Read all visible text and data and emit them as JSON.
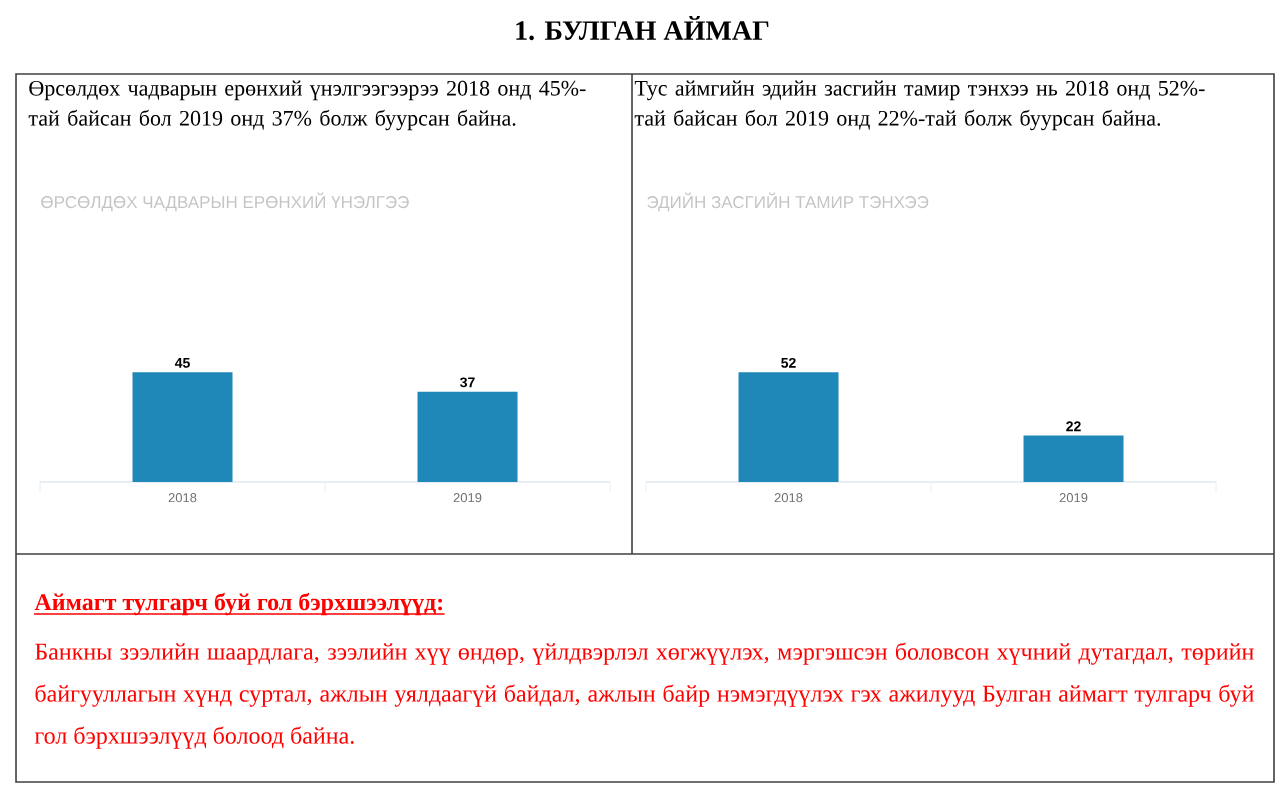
{
  "chart_data": [
    {
      "type": "bar",
      "title": "ӨРСӨЛДӨХ ЧАДВАРЫН ЕРӨНХИЙ ҮНЭЛГЭЭ",
      "categories": [
        "2018",
        "2019"
      ],
      "values": [
        45,
        37
      ],
      "color": "#1f88b8",
      "data_labels": true,
      "annotations": [
        "Өрсөлдөх чадварын ерөнхий үнэлгээгээрээ  2018 онд 45%-тай байсан бол 2019 онд 37% болж буурсан байна."
      ]
    },
    {
      "type": "bar",
      "title": "ЭДИЙН ЗАСГИЙН ТАМИР ТЭНХЭЭ",
      "categories": [
        "2018",
        "2019"
      ],
      "values": [
        52,
        22
      ],
      "color": "#1f88b8",
      "data_labels": true,
      "annotations": [
        "Тус аймгийн эдийн засгийн тамир тэнхээ нь 2018 онд 52%-тай байсан бол 2019 онд 22%-тай болж буурсан байна."
      ]
    },
    {
      "type": "other",
      "title": "1.   БУЛГАН АЙМАГ",
      "subtitle": "Аймагт тулгарч буй гол бэрхшээлүүд:",
      "annotations": [
        "Банкны зээлийн шаардлага, зээлийн хүү өндөр, үйлдвэрлэл хөгжүүлэх, мэргэшсэн боловсон хүчний дутагдал, төрийн байгууллагын хүнд суртал, ажлын уялдаагүй байдал, ажлын байр нэмэгдүүлэх гэх ажилууд Булган аймагт тулгарч буй гол бэрхшээлүүд болоод байна."
      ]
    }
  ]
}
